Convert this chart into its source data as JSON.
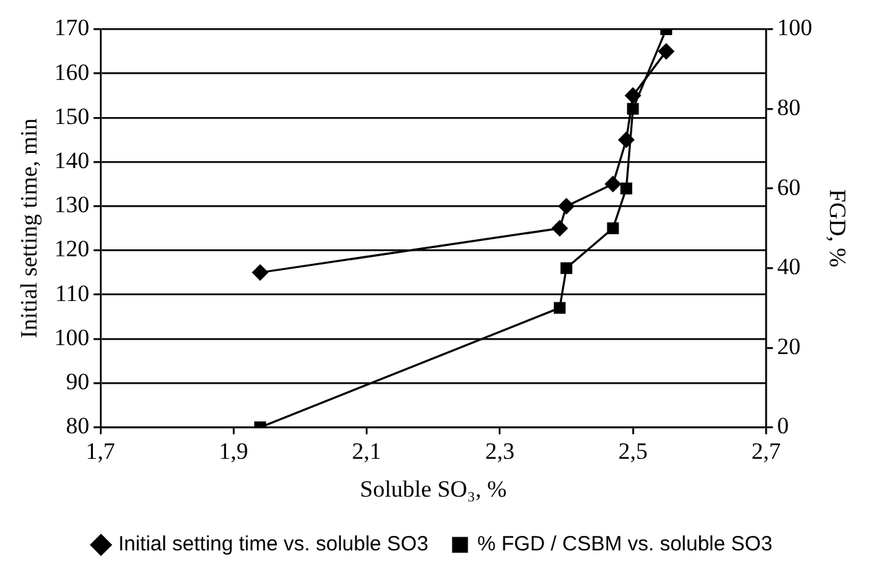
{
  "chart_data": {
    "type": "line",
    "xlabel": "Soluble SO₃, %",
    "ylabel": "Initial setting time, min",
    "y2label": "FGD, %",
    "xlim": [
      1.7,
      2.7
    ],
    "xticks": [
      {
        "value": 1.7,
        "label": "1,7"
      },
      {
        "value": 1.9,
        "label": "1,9"
      },
      {
        "value": 2.1,
        "label": "2,1"
      },
      {
        "value": 2.3,
        "label": "2,3"
      },
      {
        "value": 2.5,
        "label": "2,5"
      },
      {
        "value": 2.7,
        "label": "2,7"
      }
    ],
    "ylim": [
      80,
      170
    ],
    "yticks": [
      80,
      90,
      100,
      110,
      120,
      130,
      140,
      150,
      160,
      170
    ],
    "y2lim": [
      0,
      100
    ],
    "y2ticks": [
      0,
      20,
      40,
      60,
      80,
      100
    ],
    "grid": "y",
    "legend": "bottom",
    "series": [
      {
        "name": "Initial setting time vs. soluble SO3",
        "color": "#000000",
        "marker": "diamond",
        "x": [
          1.94,
          2.39,
          2.4,
          2.47,
          2.49,
          2.5,
          2.55
        ],
        "values": [
          115,
          125,
          130,
          135,
          145,
          155,
          165
        ]
      },
      {
        "name": "% FGD / CSBM vs. soluble SO3",
        "color": "#000000",
        "marker": "square",
        "axis": "y2",
        "x": [
          1.94,
          2.39,
          2.4,
          2.47,
          2.49,
          2.5,
          2.55
        ],
        "values": [
          0,
          30,
          40,
          50,
          60,
          80,
          100
        ]
      }
    ]
  }
}
